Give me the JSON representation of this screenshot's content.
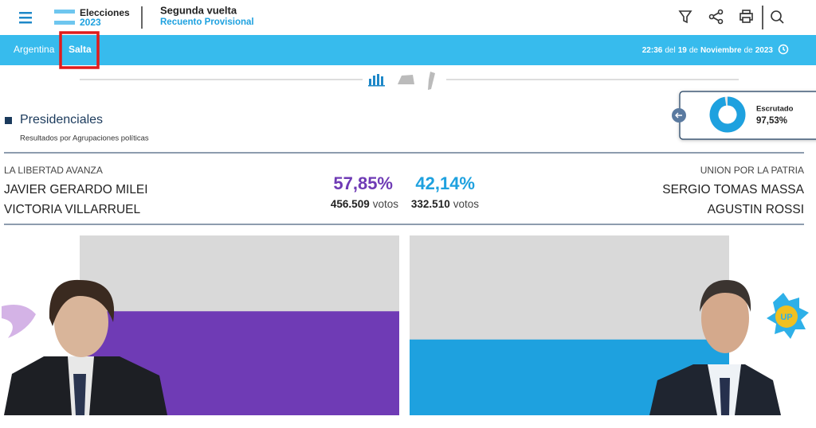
{
  "header": {
    "logo_title": "Elecciones",
    "logo_year": "2023",
    "title": "Segunda vuelta",
    "subtitle": "Recuento Provisional"
  },
  "breadcrumb": [
    "Argentina",
    "Salta"
  ],
  "timestamp": [
    {
      "text": "22:36",
      "bold": true
    },
    {
      "text": "del",
      "bold": false
    },
    {
      "text": "19",
      "bold": true
    },
    {
      "text": "de",
      "bold": false
    },
    {
      "text": "Noviembre",
      "bold": true
    },
    {
      "text": "de",
      "bold": false
    },
    {
      "text": "2023",
      "bold": true
    }
  ],
  "section": {
    "title": "Presidenciales",
    "subtitle": "Resultados por Agrupaciones políticas"
  },
  "scrutiny": {
    "label": "Escrutado",
    "value": 97.53,
    "value_label": "97,53%",
    "color": "#1ea1df"
  },
  "candidates": [
    {
      "party": "LA LIBERTAD AVANZA",
      "president": "JAVIER GERARDO MILEI",
      "vice": "VICTORIA VILLARRUEL",
      "percent": 57.85,
      "percent_label": "57,85%",
      "votes": "456.509",
      "votes_unit": "votos",
      "color": "#6f3bb5"
    },
    {
      "party": "UNION POR LA PATRIA",
      "president": "SERGIO TOMAS MASSA",
      "vice": "AGUSTIN ROSSI",
      "percent": 42.14,
      "percent_label": "42,14%",
      "votes": "332.510",
      "votes_unit": "votos",
      "color": "#1ea1df"
    }
  ]
}
